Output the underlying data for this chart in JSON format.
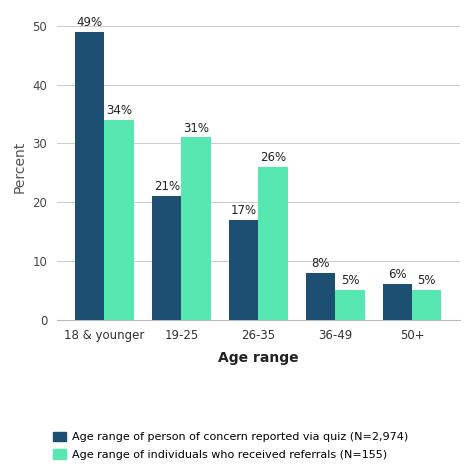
{
  "categories": [
    "18 & younger",
    "19-25",
    "26-35",
    "36-49",
    "50+"
  ],
  "series1_values": [
    49,
    21,
    17,
    8,
    6
  ],
  "series2_values": [
    34,
    31,
    26,
    5,
    5
  ],
  "series1_labels": [
    "49%",
    "21%",
    "17%",
    "8%",
    "6%"
  ],
  "series2_labels": [
    "34%",
    "31%",
    "26%",
    "5%",
    "5%"
  ],
  "series1_color": "#1d4f72",
  "series2_color": "#56e8b0",
  "xlabel": "Age range",
  "ylabel": "Percent",
  "ylim": [
    0,
    52
  ],
  "yticks": [
    0,
    10,
    20,
    30,
    40,
    50
  ],
  "legend1": "Age range of person of concern reported via quiz (N=2,974)",
  "legend2": "Age range of individuals who received referrals (N=155)",
  "bar_width": 0.38,
  "background_color": "#ffffff",
  "grid_color": "#cccccc",
  "label_fontsize": 8.5,
  "axis_label_fontsize": 10,
  "tick_fontsize": 8.5,
  "legend_fontsize": 8.0
}
